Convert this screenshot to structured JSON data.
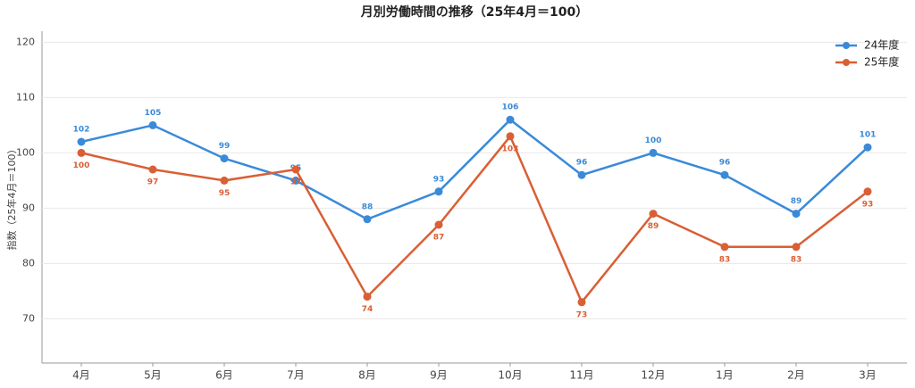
{
  "chart_data": {
    "type": "line",
    "title": "月別労働時間の推移（25年4月＝100）",
    "y_label": "指数（25年4月＝100）",
    "categories": [
      "4月",
      "5月",
      "6月",
      "7月",
      "8月",
      "9月",
      "10月",
      "11月",
      "12月",
      "1月",
      "2月",
      "3月"
    ],
    "series": [
      {
        "name": "24年度",
        "color": "#3a8ad9",
        "values": [
          102,
          105,
          99,
          95,
          88,
          93,
          106,
          96,
          100,
          96,
          89,
          101
        ]
      },
      {
        "name": "25年度",
        "color": "#d95f35",
        "values": [
          100,
          97,
          95,
          97,
          74,
          87,
          103,
          73,
          89,
          83,
          83,
          93
        ]
      }
    ],
    "ylim": [
      62,
      122
    ],
    "yticks": [
      70,
      80,
      90,
      100,
      110,
      120
    ],
    "grid": true,
    "legend": "upper right"
  }
}
